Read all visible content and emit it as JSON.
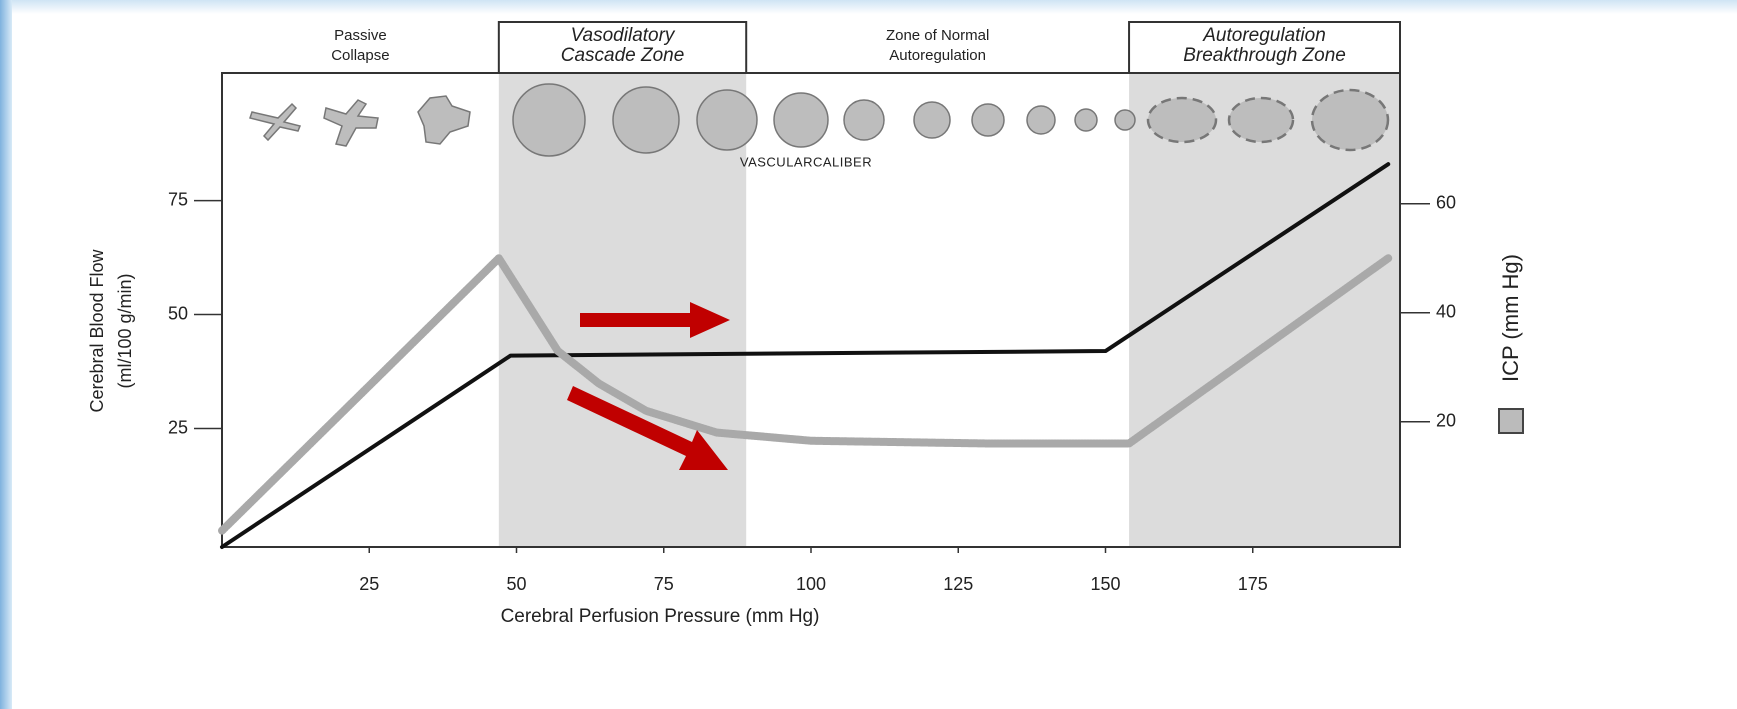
{
  "chart_data": {
    "type": "line",
    "x_label": "Cerebral Perfusion Pressure (mm Hg)",
    "y_label": [
      "Cerebral Blood Flow",
      "(ml/100 g/min)"
    ],
    "y2_label": "ICP (mm Hg)",
    "annotation": "VASCULARCALIBER",
    "xlim": [
      0,
      200
    ],
    "xticks": [
      25,
      50,
      75,
      100,
      125,
      150,
      175
    ],
    "ylim": [
      -1,
      103
    ],
    "yticks": [
      25,
      50,
      75
    ],
    "y2lim": [
      -3,
      84
    ],
    "y2ticks": [
      20,
      40,
      60
    ],
    "zones": [
      {
        "lines": [
          "Passive",
          "Collapse"
        ],
        "start": 0,
        "end": 47,
        "shaded": false,
        "boxed": false
      },
      {
        "lines": [
          "Vasodilatory",
          "Cascade Zone"
        ],
        "start": 47,
        "end": 89,
        "shaded": true,
        "boxed": true
      },
      {
        "lines": [
          "Zone of Normal",
          "Autoregulation"
        ],
        "start": 89,
        "end": 154,
        "shaded": false,
        "boxed": false
      },
      {
        "lines": [
          "Autoregulation",
          "Breakthrough Zone"
        ],
        "start": 154,
        "end": 200,
        "shaded": true,
        "boxed": true
      }
    ],
    "series": [
      {
        "color": "#111111",
        "axis": "y",
        "x": [
          0,
          49,
          150,
          198
        ],
        "values": [
          -1,
          41,
          42,
          83
        ]
      },
      {
        "color": "#a9a9a9",
        "axis": "y2",
        "x": [
          0,
          47,
          57,
          64,
          72,
          84,
          100,
          130,
          154,
          198
        ],
        "values": [
          0,
          50,
          33,
          27,
          22,
          18,
          16.5,
          16,
          16,
          50
        ]
      }
    ]
  }
}
